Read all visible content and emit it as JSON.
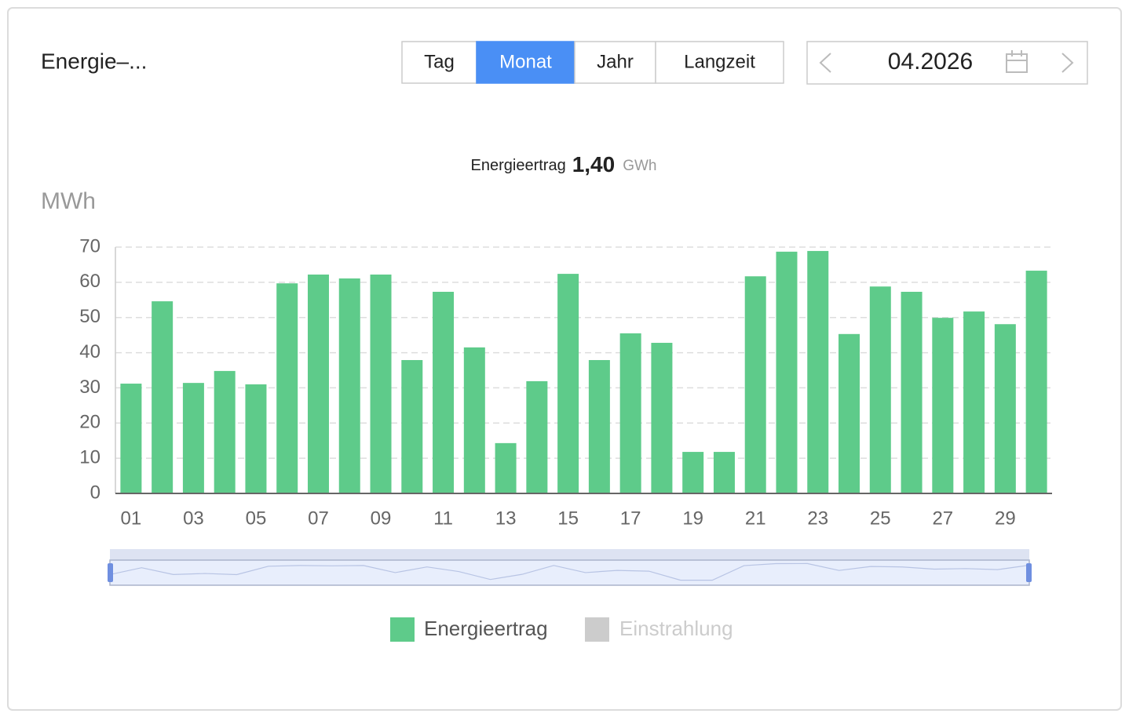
{
  "header": {
    "title": "Energie–...",
    "tabs": [
      "Tag",
      "Monat",
      "Jahr",
      "Langzeit"
    ],
    "active_tab": 1,
    "date": "04.2026"
  },
  "summary": {
    "label": "Energieertrag",
    "value": "1,40",
    "unit": "GWh"
  },
  "chart_data": {
    "type": "bar",
    "y_axis_label": "MWh",
    "categories": [
      "01",
      null,
      "03",
      null,
      "05",
      null,
      "07",
      null,
      "09",
      null,
      "11",
      null,
      "13",
      null,
      "15",
      null,
      "17",
      null,
      "19",
      null,
      "21",
      null,
      "23",
      null,
      "25",
      null,
      "27",
      null,
      "29",
      null
    ],
    "series": [
      {
        "name": "Energieertrag",
        "color": "#5ecb8a",
        "values": [
          31.2,
          54.6,
          31.4,
          34.8,
          31.0,
          59.7,
          62.2,
          61.1,
          62.2,
          37.9,
          57.3,
          41.5,
          14.3,
          31.9,
          62.4,
          37.9,
          45.5,
          42.8,
          11.8,
          11.8,
          61.7,
          68.7,
          68.9,
          45.3,
          58.8,
          57.3,
          49.9,
          51.7,
          48.1,
          63.3
        ]
      }
    ],
    "hidden_series": [
      {
        "name": "Einstrahlung",
        "color": "#cccccc"
      }
    ],
    "ylim": [
      0,
      70
    ],
    "yticks": [
      0,
      10,
      20,
      30,
      40,
      50,
      60,
      70
    ],
    "grid": true
  }
}
